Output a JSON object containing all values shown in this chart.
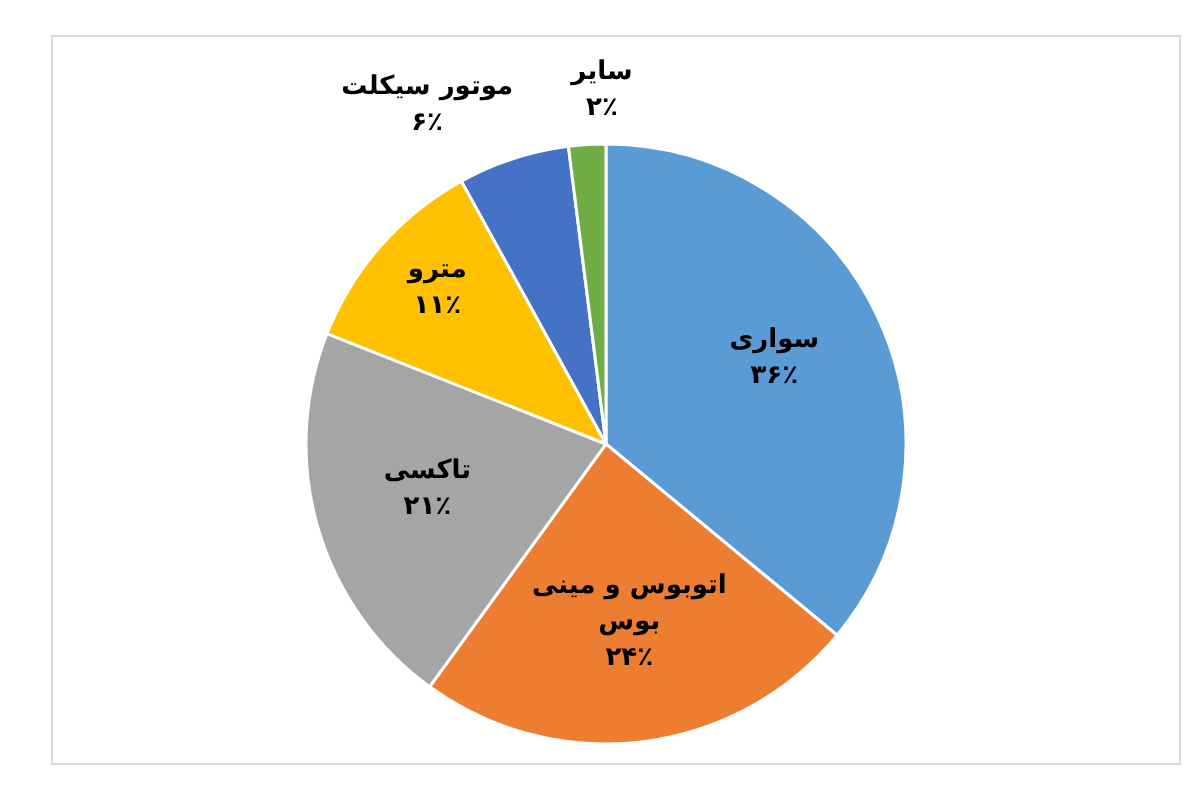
{
  "chart_data": {
    "type": "pie",
    "categories": [
      "سواری",
      "اتوبوس و مینی بوس",
      "تاکسی",
      "مترو",
      "موتور سیکلت",
      "سایر"
    ],
    "values": [
      36,
      24,
      21,
      11,
      6,
      2
    ],
    "colors": [
      "#5b9bd5",
      "#ed7d31",
      "#a5a5a5",
      "#ffc000",
      "#4472c4",
      "#70ad47"
    ],
    "value_labels": [
      "۳۶٪",
      "۲۴٪",
      "۲۱٪",
      "۱۱٪",
      "۶٪",
      "۲٪"
    ]
  }
}
